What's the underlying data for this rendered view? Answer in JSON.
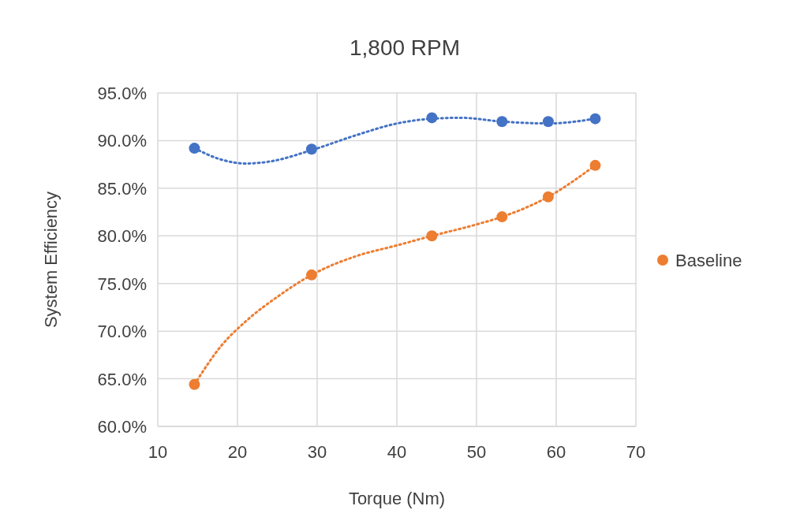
{
  "chart_data": {
    "type": "scatter",
    "title": "1,800 RPM",
    "xlabel": "Torque (Nm)",
    "ylabel": "System Efficiency",
    "xlim": [
      10,
      70
    ],
    "xticks": [
      10,
      20,
      30,
      40,
      50,
      60,
      70
    ],
    "ylim": [
      60,
      95
    ],
    "yticks": [
      {
        "value": 60,
        "label": "60.0%"
      },
      {
        "value": 65,
        "label": "65.0%"
      },
      {
        "value": 70,
        "label": "70.0%"
      },
      {
        "value": 75,
        "label": "75.0%"
      },
      {
        "value": 80,
        "label": "80.0%"
      },
      {
        "value": 85,
        "label": "85.0%"
      },
      {
        "value": 90,
        "label": "90.0%"
      },
      {
        "value": 95,
        "label": "95.0%"
      }
    ],
    "grid": true,
    "legend": "right",
    "marker": "circle",
    "series": [
      {
        "color": "#4472c4",
        "x": [
          14.6,
          29.3,
          44.4,
          53.2,
          59,
          64.9
        ],
        "values": [
          89.2,
          89.1,
          92.4,
          92,
          92,
          92.3
        ]
      },
      {
        "name": "Baseline",
        "color": "#ed7d31",
        "x": [
          14.6,
          29.3,
          44.4,
          53.2,
          59,
          64.9
        ],
        "values": [
          64.4,
          75.9,
          80,
          82,
          84.1,
          87.4
        ]
      },
      {
        "type": "line",
        "marker": "none",
        "line_style": "dotted",
        "color": "#4472c4",
        "x": [
          14.6,
          18,
          21,
          24,
          29.3,
          35,
          40,
          44.4,
          48,
          53.2,
          59,
          64.9
        ],
        "values": [
          89.2,
          88,
          87.6,
          87.8,
          89,
          90.6,
          91.8,
          92.3,
          92.4,
          92,
          91.8,
          92.3
        ]
      },
      {
        "type": "line",
        "marker": "none",
        "line_style": "dotted",
        "color": "#ed7d31",
        "x": [
          14.6,
          18,
          21,
          25,
          29.3,
          35,
          40,
          44.4,
          50,
          53.2,
          59,
          64.9
        ],
        "values": [
          64.4,
          68.5,
          71,
          73.6,
          75.9,
          77.9,
          79,
          80,
          81.2,
          82,
          84.1,
          87.4
        ]
      }
    ]
  }
}
